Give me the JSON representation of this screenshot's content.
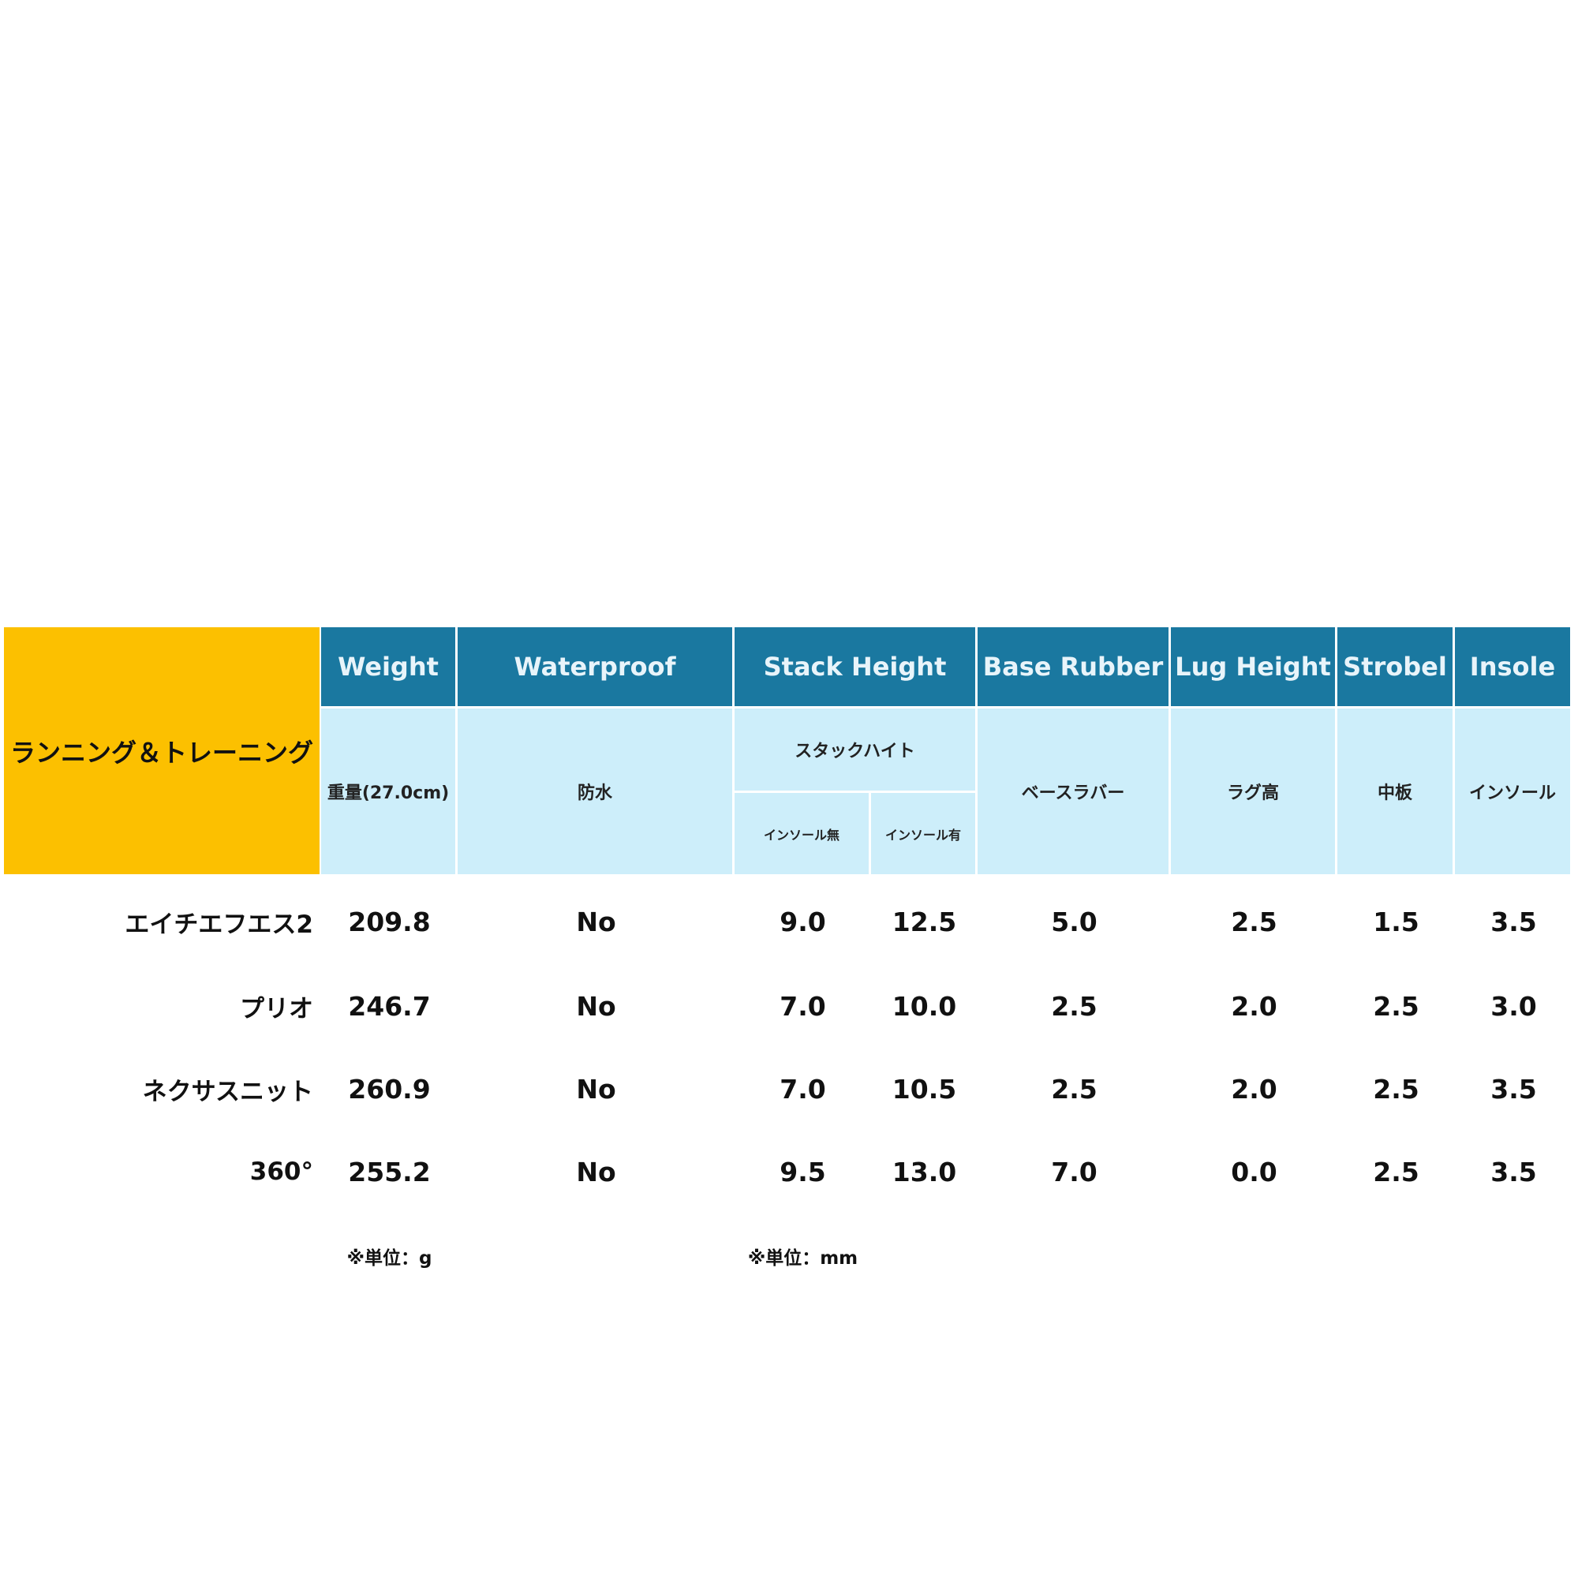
{
  "category": "ランニング＆トレーニング",
  "headers": [
    "Weight",
    "Waterproof",
    "Stack Height",
    "Base Rubber",
    "Lug Height",
    "Strobel",
    "Insole"
  ],
  "subheaders": {
    "weight": "重量(27.0cm)",
    "waterproof": "防水",
    "stack": "スタックハイト",
    "stack_without": "インソール無",
    "stack_with": "インソール有",
    "base_rubber": "ベースラバー",
    "lug": "ラグ高",
    "strobel": "中板",
    "insole": "インソール"
  },
  "rows": [
    {
      "name": "エイチエフエス2",
      "values": [
        "209.8",
        "No",
        "9.0",
        "12.5",
        "5.0",
        "2.5",
        "1.5",
        "3.5"
      ]
    },
    {
      "name": "プリオ",
      "values": [
        "246.7",
        "No",
        "7.0",
        "10.0",
        "2.5",
        "2.0",
        "2.5",
        "3.0"
      ]
    },
    {
      "name": "ネクサスニット",
      "values": [
        "260.9",
        "No",
        "7.0",
        "10.5",
        "2.5",
        "2.0",
        "2.5",
        "3.5"
      ]
    },
    {
      "name": "360°",
      "values": [
        "255.2",
        "No",
        "9.5",
        "13.0",
        "7.0",
        "0.0",
        "2.5",
        "3.5"
      ]
    }
  ],
  "notes": {
    "weight_unit": "※単位：g",
    "mm_unit": "※単位：mm"
  },
  "colors": {
    "header": "#1a78a0",
    "subheader": "#cdeefa",
    "category": "#fcc000"
  }
}
